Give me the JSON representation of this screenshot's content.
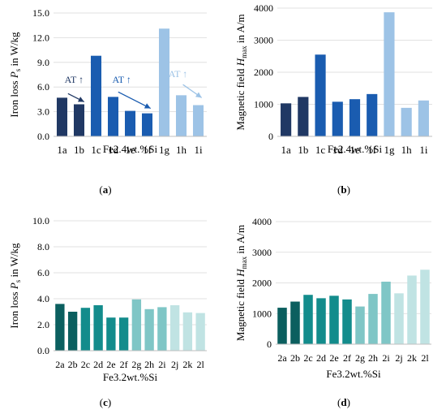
{
  "chart_data": [
    {
      "id": "a",
      "type": "bar",
      "panel_label": "(a)",
      "title": "",
      "xlabel": "Fe2.4wt.%Si",
      "ylabel": "Iron loss P_s in W/kg",
      "ylabel_parts": {
        "main": "Iron loss ",
        "var": "P",
        "sub": "s",
        "unit": " in W/kg"
      },
      "ylim": [
        0,
        15
      ],
      "yticks": [
        "0.0",
        "3.0",
        "6.0",
        "9.0",
        "12.0",
        "15.0"
      ],
      "grid": true,
      "categories": [
        "1a",
        "1b",
        "1c",
        "1d",
        "1e",
        "1f",
        "1g",
        "1h",
        "1i"
      ],
      "values": [
        4.7,
        3.9,
        9.8,
        4.8,
        3.1,
        2.8,
        13.1,
        5.0,
        3.8
      ],
      "colors": [
        "#203864",
        "#203864",
        "#1a5cb0",
        "#1a5cb0",
        "#1a5cb0",
        "#1a5cb0",
        "#9dc3e6",
        "#9dc3e6",
        "#9dc3e6"
      ],
      "annotations": [
        {
          "text": "AT ↑",
          "color": "#203864"
        },
        {
          "text": "AT ↑",
          "color": "#1a5cb0"
        },
        {
          "text": "AT ↑",
          "color": "#9dc3e6"
        }
      ]
    },
    {
      "id": "b",
      "type": "bar",
      "panel_label": "(b)",
      "title": "",
      "xlabel": "Fe2.4wt.%Si",
      "ylabel": "Magnetic field H_max in A/m",
      "ylabel_parts": {
        "main": "Magnetic field ",
        "var": "H",
        "sub": "max",
        "unit": " in A/m"
      },
      "ylim": [
        0,
        4000
      ],
      "yticks": [
        "0",
        "1000",
        "2000",
        "3000",
        "4000"
      ],
      "grid": true,
      "categories": [
        "1a",
        "1b",
        "1c",
        "1d",
        "1e",
        "1f",
        "1g",
        "1h",
        "1i"
      ],
      "values": [
        1030,
        1230,
        2550,
        1080,
        1160,
        1320,
        3870,
        890,
        1120
      ],
      "colors": [
        "#203864",
        "#203864",
        "#1a5cb0",
        "#1a5cb0",
        "#1a5cb0",
        "#1a5cb0",
        "#9dc3e6",
        "#9dc3e6",
        "#9dc3e6"
      ],
      "annotations": []
    },
    {
      "id": "c",
      "type": "bar",
      "panel_label": "(c)",
      "title": "",
      "xlabel": "Fe3.2wt.%Si",
      "ylabel": "Iron loss P_s in W/kg",
      "ylabel_parts": {
        "main": "Iron loss ",
        "var": "P",
        "sub": "s",
        "unit": " in W/kg"
      },
      "ylim": [
        0,
        10
      ],
      "yticks": [
        "0.0",
        "2.0",
        "4.0",
        "6.0",
        "8.0",
        "10.0"
      ],
      "grid": true,
      "categories": [
        "2a",
        "2b",
        "2c",
        "2d",
        "2e",
        "2f",
        "2g",
        "2h",
        "2i",
        "2j",
        "2k",
        "2l"
      ],
      "category_labels": [
        "2a",
        "2b",
        "2c",
        "2d",
        "2e",
        "2f",
        "2g",
        "2h",
        "2i",
        "2j",
        "2k",
        "2l"
      ],
      "values": [
        3.6,
        3.0,
        3.3,
        3.5,
        2.55,
        2.55,
        3.95,
        3.2,
        3.35,
        3.5,
        2.95,
        2.9
      ],
      "colors": [
        "#0b5f5f",
        "#0b5f5f",
        "#138c8c",
        "#138c8c",
        "#138c8c",
        "#138c8c",
        "#7fc6c6",
        "#7fc6c6",
        "#7fc6c6",
        "#c0e3e3",
        "#c0e3e3",
        "#c0e3e3"
      ],
      "annotations": []
    },
    {
      "id": "d",
      "type": "bar",
      "panel_label": "(d)",
      "title": "",
      "xlabel": "Fe3.2wt.%Si",
      "ylabel": "Magnetic field H_max in A/m",
      "ylabel_parts": {
        "main": "Magnetic field ",
        "var": "H",
        "sub": "max",
        "unit": " in A/m"
      },
      "ylim": [
        0,
        4000
      ],
      "yticks": [
        "0",
        "1000",
        "2000",
        "3000",
        "4000"
      ],
      "grid": true,
      "categories": [
        "2a",
        "2b",
        "2c",
        "2d",
        "2e",
        "2f",
        "2g",
        "2h",
        "2i",
        "2j",
        "2k",
        "2l"
      ],
      "category_labels": [
        "2a",
        "2b",
        "2c",
        "2d",
        "2e",
        "2f",
        "2g",
        "2h",
        "2i",
        "2j",
        "2k",
        "2l"
      ],
      "values": [
        1190,
        1390,
        1610,
        1500,
        1580,
        1460,
        1230,
        1640,
        2040,
        1660,
        2240,
        2430
      ],
      "colors": [
        "#0b5f5f",
        "#0b5f5f",
        "#138c8c",
        "#138c8c",
        "#138c8c",
        "#138c8c",
        "#7fc6c6",
        "#7fc6c6",
        "#7fc6c6",
        "#c0e3e3",
        "#c0e3e3",
        "#c0e3e3"
      ],
      "annotations": []
    }
  ]
}
